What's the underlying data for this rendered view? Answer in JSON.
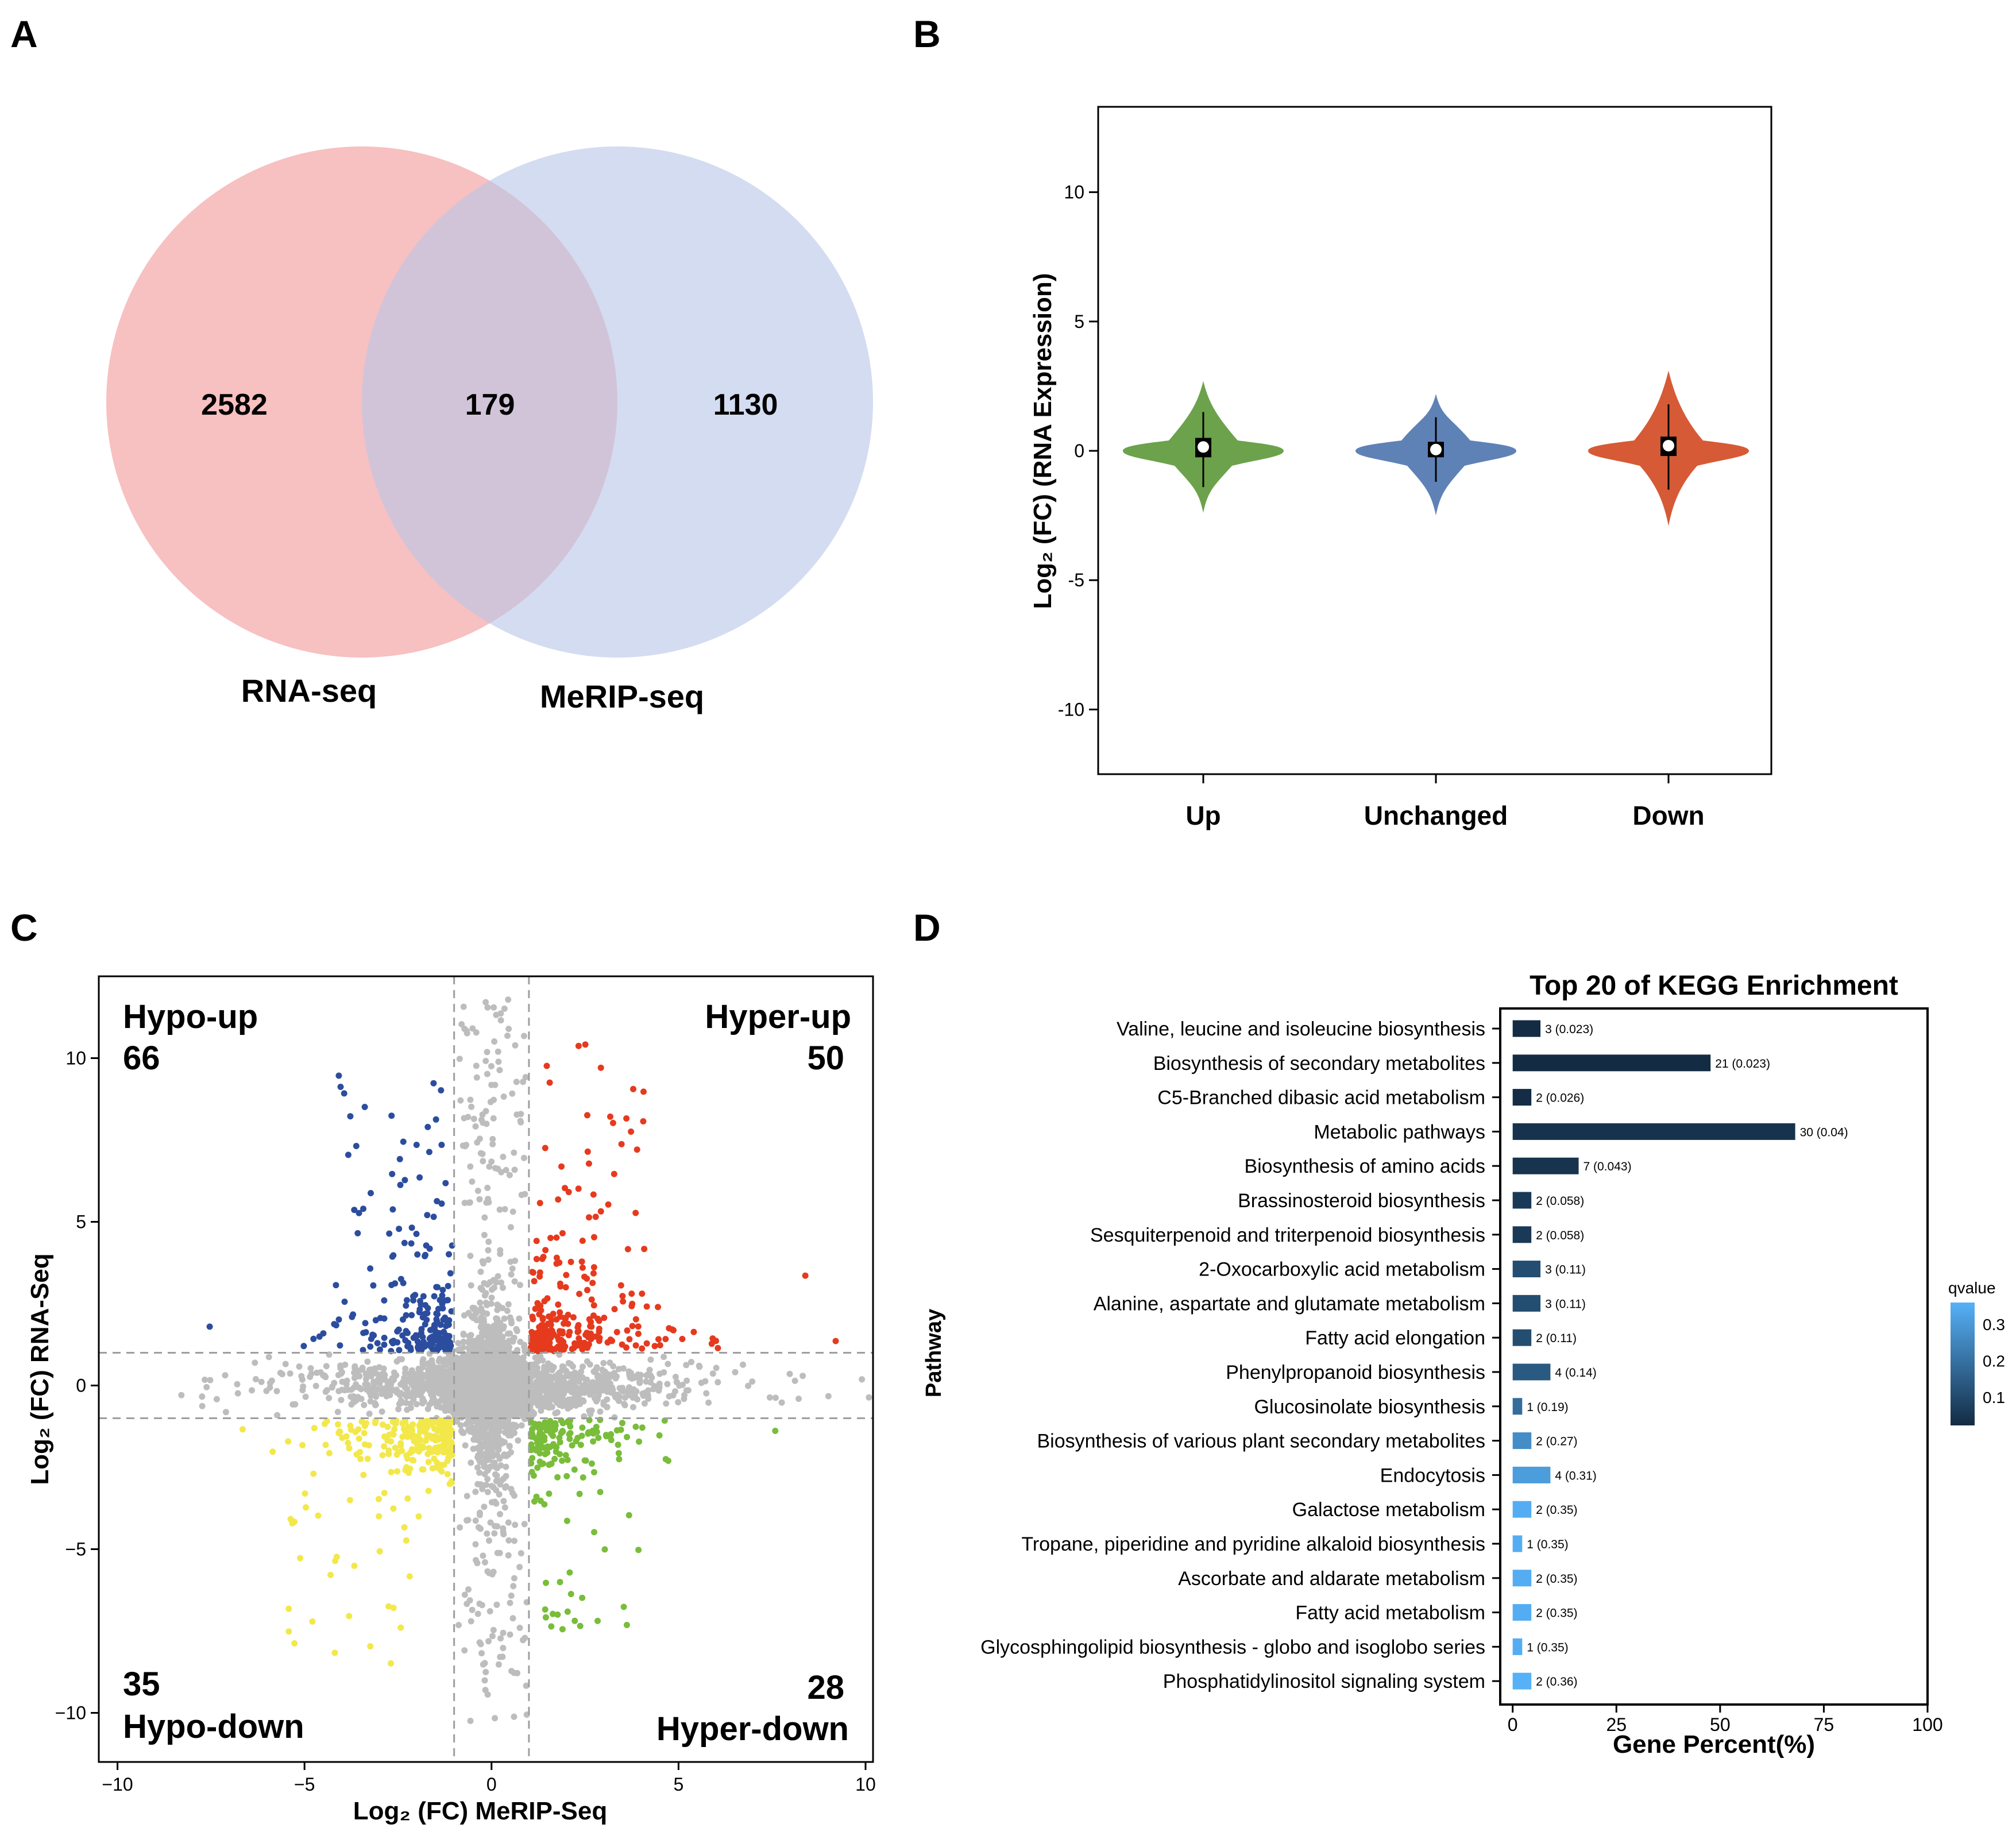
{
  "panels": {
    "a": "A",
    "b": "B",
    "c": "C",
    "d": "D"
  },
  "colors": {
    "rna": "#f4a7a9",
    "merip": "#b9c6e8",
    "violin_up": "#6ba24b",
    "violin_unchanged": "#5f82b6",
    "violin_down": "#d65a36",
    "scatter_gray": "#bdbdbd",
    "hypo_up": "#2c4d9e",
    "hyper_up": "#e63a1e",
    "hypo_down": "#f2e84a",
    "hyper_down": "#79bd3a",
    "qvalue_low": "#132b43",
    "qvalue_high": "#56b1f7"
  },
  "chart_data": [
    {
      "panel": "A",
      "type": "venn",
      "sets": [
        {
          "name": "RNA-seq",
          "only": "2582"
        },
        {
          "name": "MeRIP-seq",
          "only": "1130"
        }
      ],
      "intersection": "179"
    },
    {
      "panel": "B",
      "type": "violin",
      "ylabel": "Log₂ (FC)  (RNA Expression)",
      "ylim": [
        -12.5,
        13.3
      ],
      "yticks": [
        "10",
        "5",
        "0",
        "-5",
        "-10"
      ],
      "ytick_values": [
        10,
        5,
        0,
        -5,
        -10
      ],
      "categories": [
        "Up",
        "Unchanged",
        "Down"
      ],
      "groups": [
        {
          "name": "Up",
          "min": -2.4,
          "max": 2.7,
          "q1": -0.25,
          "median": 0.15,
          "q3": 0.5,
          "whisker_low": -1.4,
          "whisker_high": 1.5,
          "color_key": "violin_up"
        },
        {
          "name": "Unchanged",
          "min": -2.5,
          "max": 2.2,
          "q1": -0.25,
          "median": 0.05,
          "q3": 0.35,
          "whisker_low": -1.2,
          "whisker_high": 1.3,
          "color_key": "violin_unchanged"
        },
        {
          "name": "Down",
          "min": -2.9,
          "max": 3.1,
          "q1": -0.2,
          "median": 0.2,
          "q3": 0.55,
          "whisker_low": -1.5,
          "whisker_high": 1.8,
          "color_key": "violin_down"
        }
      ]
    },
    {
      "panel": "C",
      "type": "scatter",
      "xlabel": "Log₂ (FC) MeRIP-Seq",
      "ylabel": "Log₂ (FC) RNA-Seq",
      "xlim": [
        -10.5,
        10.2
      ],
      "ylim": [
        -11.5,
        12.5
      ],
      "xticks": [
        "−10",
        "−5",
        "0",
        "5",
        "10"
      ],
      "xtick_values": [
        -10,
        -5,
        0,
        5,
        10
      ],
      "yticks": [
        "10",
        "5",
        "0",
        "−5",
        "−10"
      ],
      "ytick_values": [
        10,
        5,
        0,
        -5,
        -10
      ],
      "thresholds": {
        "x": [
          -1,
          1
        ],
        "y": [
          -1,
          1
        ]
      },
      "quadrants": [
        {
          "name": "Hypo-up",
          "count": "66",
          "color_key": "hypo_up"
        },
        {
          "name": "Hyper-up",
          "count": "50",
          "color_key": "hyper_up"
        },
        {
          "name": "Hypo-down",
          "count": "35",
          "color_key": "hypo_down"
        },
        {
          "name": "Hyper-down",
          "count": "28",
          "color_key": "hyper_down"
        }
      ]
    },
    {
      "panel": "D",
      "type": "bar",
      "orientation": "horizontal",
      "title": "Top 20 of KEGG Enrichment",
      "xlabel": "Gene Percent(%)",
      "ylabel": "Pathway",
      "xlim": [
        -3,
        100
      ],
      "xticks": [
        "0",
        "25",
        "50",
        "75",
        "100"
      ],
      "xtick_values": [
        0,
        25,
        50,
        75,
        100
      ],
      "legend": {
        "title": "qvalue",
        "ticks": [
          "0.3",
          "0.2",
          "0.1"
        ],
        "tick_values": [
          0.3,
          0.2,
          0.1
        ],
        "range": [
          0.023,
          0.36
        ]
      },
      "categories": [
        "Valine, leucine and isoleucine biosynthesis",
        "Biosynthesis of secondary metabolites",
        "C5-Branched dibasic acid metabolism",
        "Metabolic pathways",
        "Biosynthesis of amino acids",
        "Brassinosteroid biosynthesis",
        "Sesquiterpenoid and triterpenoid biosynthesis",
        "2-Oxocarboxylic acid metabolism",
        "Alanine, aspartate and glutamate metabolism",
        "Fatty acid elongation",
        "Phenylpropanoid biosynthesis",
        "Glucosinolate biosynthesis",
        "Biosynthesis of various plant secondary metabolites",
        "Endocytosis",
        "Galactose metabolism",
        "Tropane, piperidine and pyridine alkaloid biosynthesis",
        "Ascorbate and aldarate metabolism",
        "Fatty acid metabolism",
        "Glycosphingolipid biosynthesis - globo and isoglobo series",
        "Phosphatidylinositol signaling system"
      ],
      "values": [
        6.7,
        47.7,
        4.5,
        68.1,
        15.9,
        4.5,
        4.5,
        6.7,
        6.7,
        4.5,
        9.1,
        2.3,
        4.5,
        9.1,
        4.5,
        2.3,
        4.5,
        4.5,
        2.3,
        4.5
      ],
      "qvalues": [
        0.023,
        0.023,
        0.026,
        0.04,
        0.043,
        0.058,
        0.058,
        0.11,
        0.11,
        0.11,
        0.14,
        0.19,
        0.27,
        0.31,
        0.35,
        0.35,
        0.35,
        0.35,
        0.35,
        0.36
      ],
      "bar_labels": [
        "3 (0.023)",
        "21 (0.023)",
        "2 (0.026)",
        "30 (0.04)",
        "7 (0.043)",
        "2 (0.058)",
        "2 (0.058)",
        "3 (0.11)",
        "3 (0.11)",
        "2 (0.11)",
        "4 (0.14)",
        "1 (0.19)",
        "2 (0.27)",
        "4 (0.31)",
        "2 (0.35)",
        "1 (0.35)",
        "2 (0.35)",
        "2 (0.35)",
        "1 (0.35)",
        "2 (0.36)"
      ]
    }
  ]
}
